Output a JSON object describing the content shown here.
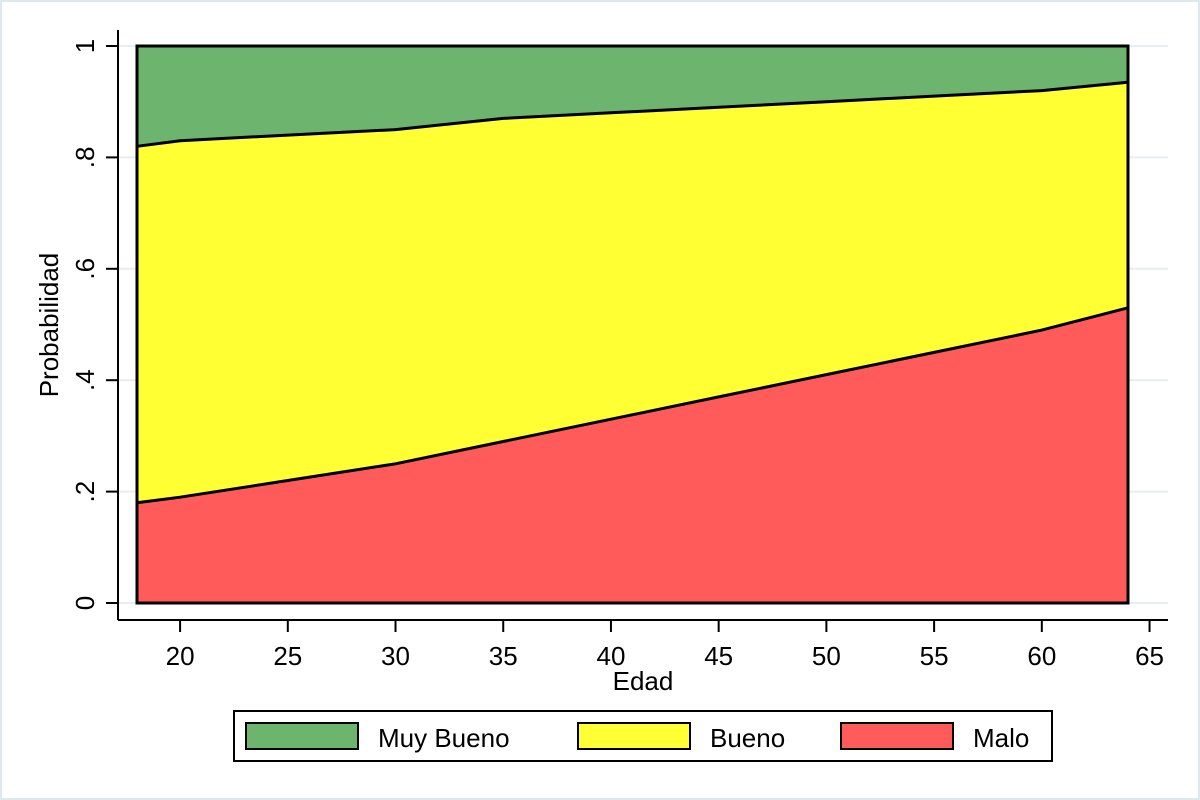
{
  "chart_data": {
    "type": "area",
    "stacked": true,
    "xlabel": "Edad",
    "ylabel": "Probabilidad",
    "x_ticks": [
      20,
      25,
      30,
      35,
      40,
      45,
      50,
      55,
      60,
      65
    ],
    "y_ticks": [
      0,
      0.2,
      0.4,
      0.6,
      0.8,
      1
    ],
    "y_tick_labels": [
      "0",
      ".2",
      ".4",
      ".6",
      ".8",
      "1"
    ],
    "xlim": [
      18,
      65
    ],
    "ylim": [
      0,
      1
    ],
    "x": [
      18,
      20,
      25,
      30,
      35,
      40,
      45,
      50,
      55,
      60,
      64
    ],
    "boundaries": [
      {
        "name": "Malo",
        "values": [
          0.18,
          0.19,
          0.22,
          0.25,
          0.29,
          0.33,
          0.37,
          0.41,
          0.45,
          0.49,
          0.53
        ]
      },
      {
        "name": "Bueno",
        "values": [
          0.82,
          0.83,
          0.84,
          0.85,
          0.87,
          0.88,
          0.89,
          0.9,
          0.91,
          0.92,
          0.935
        ]
      }
    ],
    "series": [
      {
        "name": "Muy Bueno",
        "color": "#6db46f"
      },
      {
        "name": "Bueno",
        "color": "#ffff33"
      },
      {
        "name": "Malo",
        "color": "#ff5b5b"
      }
    ],
    "grid": true,
    "legend_position": "bottom"
  }
}
